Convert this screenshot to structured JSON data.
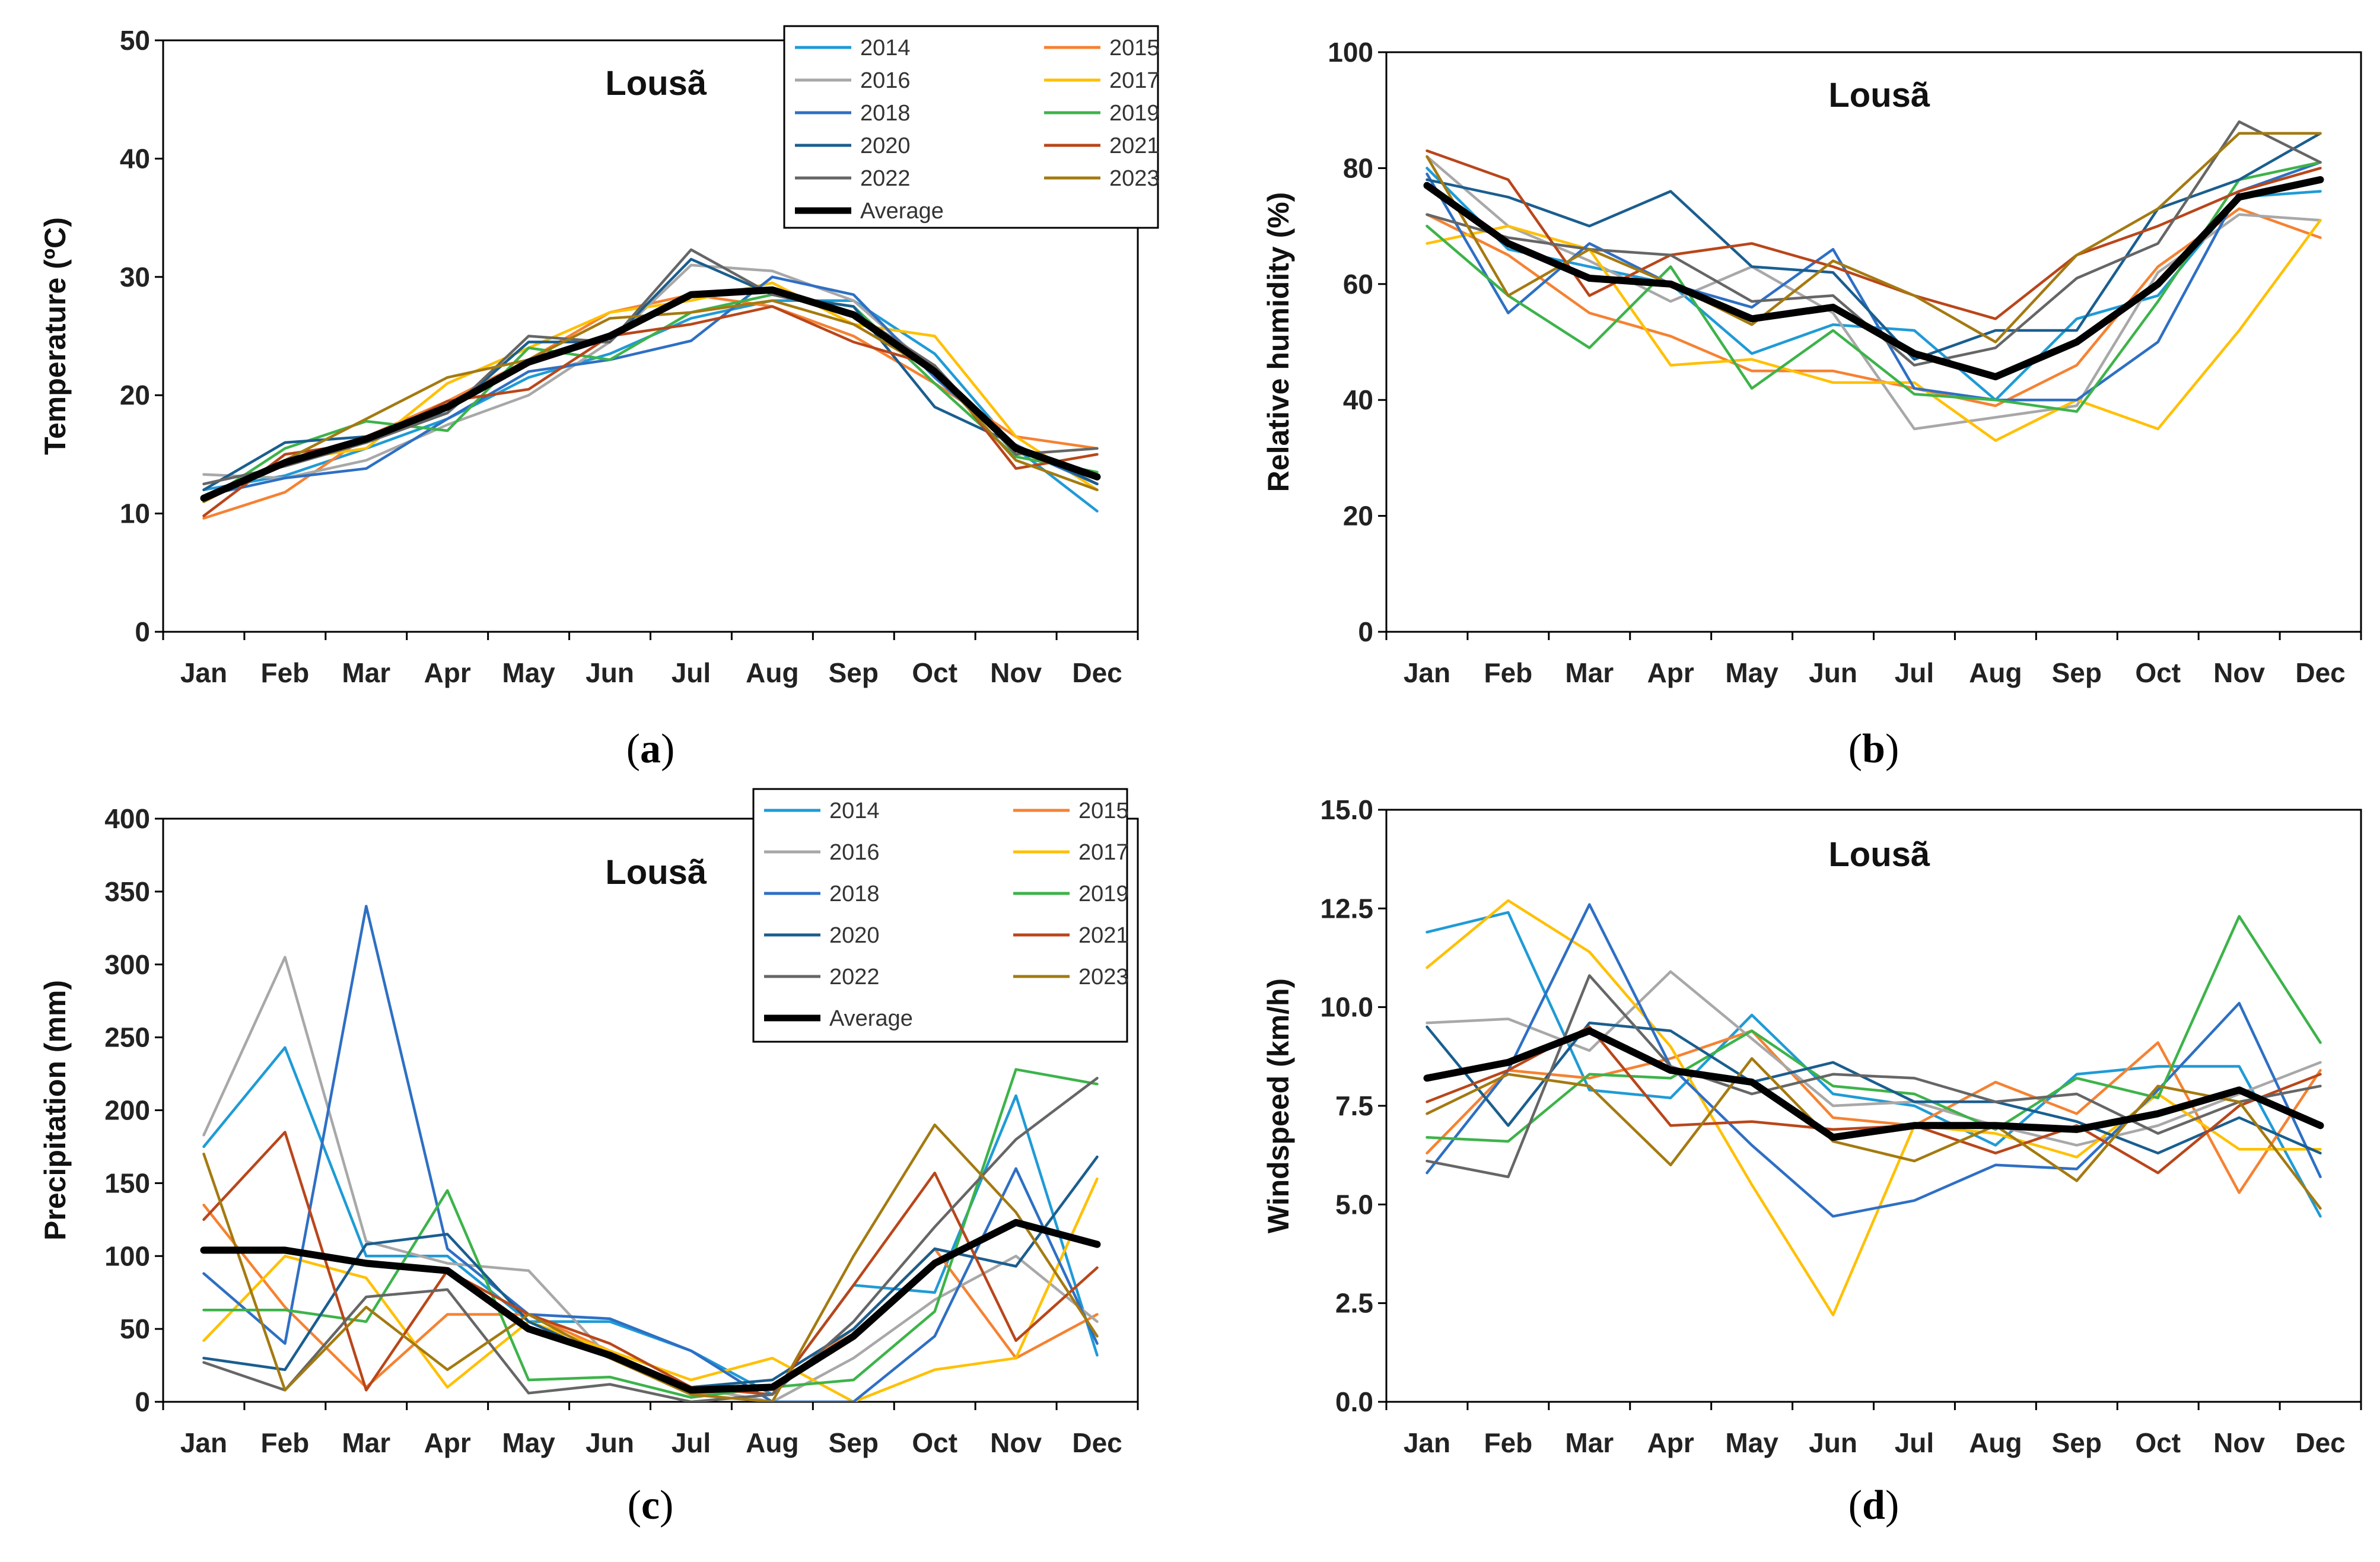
{
  "months": [
    "Jan",
    "Feb",
    "Mar",
    "Apr",
    "May",
    "Jun",
    "Jul",
    "Aug",
    "Sep",
    "Oct",
    "Nov",
    "Dec"
  ],
  "series_styles": [
    {
      "name": "2014",
      "color": "#1f9bd6"
    },
    {
      "name": "2015",
      "color": "#f58232"
    },
    {
      "name": "2016",
      "color": "#a8a8a8"
    },
    {
      "name": "2017",
      "color": "#ffc000"
    },
    {
      "name": "2018",
      "color": "#2e6fc4"
    },
    {
      "name": "2019",
      "color": "#3db34a"
    },
    {
      "name": "2020",
      "color": "#1a5e8f"
    },
    {
      "name": "2021",
      "color": "#b9461a"
    },
    {
      "name": "2022",
      "color": "#666666"
    },
    {
      "name": "2023",
      "color": "#a47a10"
    },
    {
      "name": "Average",
      "color": "#000000"
    }
  ],
  "chart_data": [
    {
      "type": "line",
      "panel_label": "a",
      "title": "Lousã",
      "ylabel": "Temperature (ºC)",
      "xlabel": "",
      "ylim": [
        0,
        50
      ],
      "yticks": [
        "0",
        "10",
        "20",
        "30",
        "40",
        "50"
      ],
      "legend": "top-right",
      "series": [
        {
          "name": "2014",
          "values": [
            12.0,
            13.2,
            15.5,
            18.0,
            21.5,
            23.5,
            26.5,
            28.0,
            28.0,
            23.5,
            15.5,
            10.2
          ]
        },
        {
          "name": "2015",
          "values": [
            9.6,
            11.8,
            16.5,
            19.5,
            23.0,
            27.0,
            28.5,
            27.5,
            25.0,
            21.0,
            16.5,
            15.5
          ]
        },
        {
          "name": "2016",
          "values": [
            13.3,
            13.0,
            14.5,
            17.5,
            20.0,
            24.5,
            31.0,
            30.5,
            28.0,
            22.0,
            15.5,
            12.5
          ]
        },
        {
          "name": "2017",
          "values": [
            11.0,
            14.5,
            15.5,
            21.0,
            24.0,
            27.0,
            28.0,
            29.5,
            26.0,
            25.0,
            16.5,
            12.0
          ]
        },
        {
          "name": "2018",
          "values": [
            11.5,
            13.0,
            13.8,
            18.0,
            22.0,
            23.0,
            24.6,
            30.0,
            28.5,
            21.5,
            15.5,
            12.5
          ]
        },
        {
          "name": "2019",
          "values": [
            11.0,
            15.5,
            17.8,
            17.0,
            24.0,
            23.0,
            27.0,
            28.5,
            27.5,
            21.0,
            14.8,
            13.5
          ]
        },
        {
          "name": "2020",
          "values": [
            12.0,
            16.0,
            16.5,
            18.5,
            24.5,
            24.5,
            31.5,
            28.5,
            27.5,
            19.0,
            15.8,
            12.5
          ]
        },
        {
          "name": "2021",
          "values": [
            9.8,
            15.0,
            16.0,
            19.5,
            20.5,
            25.0,
            26.0,
            27.5,
            24.5,
            22.5,
            13.8,
            15.0
          ]
        },
        {
          "name": "2022",
          "values": [
            12.5,
            14.0,
            16.0,
            18.5,
            25.0,
            24.5,
            32.3,
            28.5,
            27.0,
            22.5,
            15.0,
            15.5
          ]
        },
        {
          "name": "2023",
          "values": [
            11.0,
            14.5,
            18.0,
            21.5,
            23.0,
            26.5,
            27.0,
            28.0,
            26.0,
            22.0,
            14.5,
            12.0
          ]
        },
        {
          "name": "Average",
          "values": [
            11.3,
            14.3,
            16.3,
            19.0,
            22.8,
            25.0,
            28.5,
            28.9,
            26.8,
            22.0,
            15.5,
            13.1
          ]
        }
      ]
    },
    {
      "type": "line",
      "panel_label": "b",
      "title": "Lousã",
      "ylabel": "Relative humidity (%)",
      "xlabel": "",
      "ylim": [
        0,
        100
      ],
      "yticks": [
        "0",
        "20",
        "40",
        "60",
        "80",
        "100"
      ],
      "legend": "none",
      "series": [
        {
          "name": "2014",
          "values": [
            80,
            66,
            63,
            60,
            48,
            53,
            52,
            40,
            54,
            58,
            75,
            76
          ]
        },
        {
          "name": "2015",
          "values": [
            72,
            65,
            55,
            51,
            45,
            45,
            42,
            39,
            46,
            63,
            73,
            68
          ]
        },
        {
          "name": "2016",
          "values": [
            82,
            70,
            64,
            57,
            63,
            55,
            35,
            37,
            39,
            62,
            72,
            71
          ]
        },
        {
          "name": "2017",
          "values": [
            67,
            70,
            66,
            46,
            47,
            43,
            43,
            33,
            40,
            35,
            52,
            71
          ]
        },
        {
          "name": "2018",
          "values": [
            79,
            55,
            67,
            60,
            56,
            66,
            42,
            40,
            40,
            50,
            76,
            81
          ]
        },
        {
          "name": "2019",
          "values": [
            70,
            58,
            49,
            63,
            42,
            52,
            41,
            40,
            38,
            57,
            78,
            81
          ]
        },
        {
          "name": "2020",
          "values": [
            78,
            75,
            70,
            76,
            63,
            62,
            47,
            52,
            52,
            73,
            78,
            86
          ]
        },
        {
          "name": "2021",
          "values": [
            83,
            78,
            58,
            65,
            67,
            63,
            58,
            54,
            65,
            70,
            76,
            80
          ]
        },
        {
          "name": "2022",
          "values": [
            72,
            68,
            66,
            65,
            57,
            58,
            46,
            49,
            61,
            67,
            88,
            81
          ]
        },
        {
          "name": "2023",
          "values": [
            82,
            58,
            66,
            60,
            53,
            64,
            58,
            50,
            65,
            73,
            86,
            86
          ]
        },
        {
          "name": "Average",
          "values": [
            77,
            67,
            61,
            60,
            54,
            56,
            48,
            44,
            50,
            60,
            75,
            78
          ]
        }
      ]
    },
    {
      "type": "line",
      "panel_label": "c",
      "title": "Lousã",
      "ylabel": "Precipitation (mm)",
      "xlabel": "",
      "ylim": [
        0,
        400
      ],
      "yticks": [
        "0",
        "50",
        "100",
        "150",
        "200",
        "250",
        "300",
        "350",
        "400"
      ],
      "legend": "top-right",
      "series": [
        {
          "name": "2014",
          "values": [
            175,
            243,
            100,
            100,
            55,
            55,
            35,
            5,
            80,
            75,
            210,
            32
          ]
        },
        {
          "name": "2015",
          "values": [
            135,
            65,
            10,
            60,
            60,
            35,
            5,
            10,
            50,
            105,
            30,
            60
          ]
        },
        {
          "name": "2016",
          "values": [
            183,
            305,
            110,
            95,
            90,
            30,
            10,
            0,
            30,
            70,
            100,
            55
          ]
        },
        {
          "name": "2017",
          "values": [
            42,
            100,
            85,
            10,
            55,
            35,
            15,
            30,
            0,
            22,
            30,
            153
          ]
        },
        {
          "name": "2018",
          "values": [
            88,
            40,
            340,
            105,
            60,
            57,
            35,
            0,
            0,
            45,
            160,
            40
          ]
        },
        {
          "name": "2019",
          "values": [
            63,
            63,
            55,
            145,
            15,
            17,
            3,
            10,
            15,
            62,
            228,
            218
          ]
        },
        {
          "name": "2020",
          "values": [
            30,
            22,
            108,
            115,
            55,
            30,
            10,
            15,
            50,
            105,
            93,
            168
          ]
        },
        {
          "name": "2021",
          "values": [
            125,
            185,
            8,
            90,
            60,
            40,
            10,
            5,
            80,
            157,
            42,
            92
          ]
        },
        {
          "name": "2022",
          "values": [
            27,
            8,
            72,
            77,
            6,
            12,
            0,
            5,
            55,
            120,
            180,
            222
          ]
        },
        {
          "name": "2023",
          "values": [
            170,
            8,
            65,
            22,
            60,
            30,
            5,
            0,
            100,
            190,
            130,
            45
          ]
        },
        {
          "name": "Average",
          "values": [
            104,
            104,
            95,
            90,
            50,
            32,
            8,
            10,
            45,
            95,
            123,
            108
          ]
        }
      ]
    },
    {
      "type": "line",
      "panel_label": "d",
      "title": "Lousã",
      "ylabel": "Windspeed (km/h)",
      "xlabel": "",
      "ylim": [
        0,
        15
      ],
      "yticks": [
        "0.0",
        "2.5",
        "5.0",
        "7.5",
        "10.0",
        "12.5",
        "15.0"
      ],
      "legend": "none",
      "series": [
        {
          "name": "2014",
          "values": [
            11.9,
            12.4,
            7.9,
            7.7,
            9.8,
            7.8,
            7.5,
            6.5,
            8.3,
            8.5,
            8.5,
            4.7
          ]
        },
        {
          "name": "2015",
          "values": [
            6.3,
            8.4,
            8.2,
            8.7,
            9.4,
            7.2,
            7.0,
            8.1,
            7.3,
            9.1,
            5.3,
            8.4
          ]
        },
        {
          "name": "2016",
          "values": [
            9.6,
            9.7,
            8.9,
            10.9,
            9.2,
            7.5,
            7.6,
            7.0,
            6.5,
            7.0,
            7.8,
            8.6
          ]
        },
        {
          "name": "2017",
          "values": [
            11.0,
            12.7,
            11.4,
            9.0,
            5.5,
            2.2,
            7.0,
            6.8,
            6.2,
            7.8,
            6.4,
            6.4
          ]
        },
        {
          "name": "2018",
          "values": [
            5.8,
            8.4,
            12.6,
            8.5,
            6.5,
            4.7,
            5.1,
            6.0,
            5.9,
            7.9,
            10.1,
            5.7
          ]
        },
        {
          "name": "2019",
          "values": [
            6.7,
            6.6,
            8.3,
            8.2,
            9.4,
            8.0,
            7.8,
            6.9,
            8.2,
            7.7,
            12.3,
            9.1
          ]
        },
        {
          "name": "2020",
          "values": [
            9.5,
            7.0,
            9.6,
            9.4,
            8.1,
            8.6,
            7.6,
            7.6,
            7.1,
            6.3,
            7.2,
            6.3
          ]
        },
        {
          "name": "2021",
          "values": [
            7.6,
            8.4,
            9.5,
            7.0,
            7.1,
            6.9,
            7.0,
            6.3,
            7.0,
            5.8,
            7.5,
            8.3
          ]
        },
        {
          "name": "2022",
          "values": [
            6.1,
            5.7,
            10.8,
            8.5,
            7.8,
            8.3,
            8.2,
            7.6,
            7.8,
            6.8,
            7.6,
            8.0
          ]
        },
        {
          "name": "2023",
          "values": [
            7.3,
            8.3,
            8.0,
            6.0,
            8.7,
            6.6,
            6.1,
            7.0,
            5.6,
            8.0,
            7.6,
            4.9
          ]
        },
        {
          "name": "Average",
          "values": [
            8.2,
            8.6,
            9.4,
            8.4,
            8.1,
            6.7,
            7.0,
            7.0,
            6.9,
            7.3,
            7.9,
            7.0
          ]
        }
      ]
    }
  ]
}
